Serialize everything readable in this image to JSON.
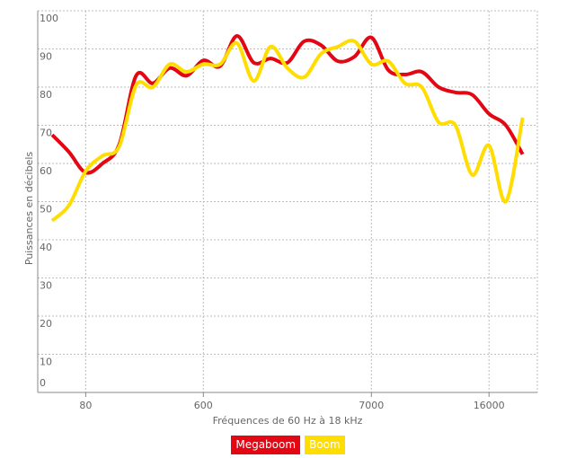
{
  "chart_data": {
    "type": "line",
    "x_title": "Fréquences de 60 Hz à 18 kHz",
    "y_title": "Puissances en décibels",
    "categories": [
      null,
      null,
      "80",
      null,
      null,
      null,
      null,
      null,
      null,
      "600",
      null,
      null,
      null,
      null,
      null,
      null,
      null,
      null,
      null,
      "7000",
      null,
      null,
      null,
      null,
      null,
      null,
      "16000",
      null,
      null
    ],
    "series": [
      {
        "name": "Megaboom",
        "color": "#e30613",
        "values": [
          67.5,
          63,
          57.6,
          60,
          65,
          83,
          81,
          85,
          83,
          87,
          85.5,
          93.4,
          86.4,
          87.5,
          86.4,
          92,
          91,
          86.8,
          88,
          93,
          84.5,
          83.3,
          84,
          80,
          78.6,
          78,
          73,
          70,
          62.4
        ]
      },
      {
        "name": "Boom",
        "color": "#ffdd00",
        "values": [
          45,
          49,
          58,
          62,
          64.5,
          80.5,
          80,
          86,
          84,
          86,
          86,
          91.5,
          81.6,
          90.6,
          85,
          82.6,
          88.7,
          90.6,
          92,
          86,
          86.8,
          81,
          80,
          70.8,
          70,
          57,
          64.7,
          50,
          72
        ]
      }
    ],
    "ylim": [
      0,
      100
    ],
    "yticks": [
      0,
      10,
      20,
      30,
      40,
      50,
      60,
      70,
      80,
      90,
      100
    ],
    "grid": true
  }
}
